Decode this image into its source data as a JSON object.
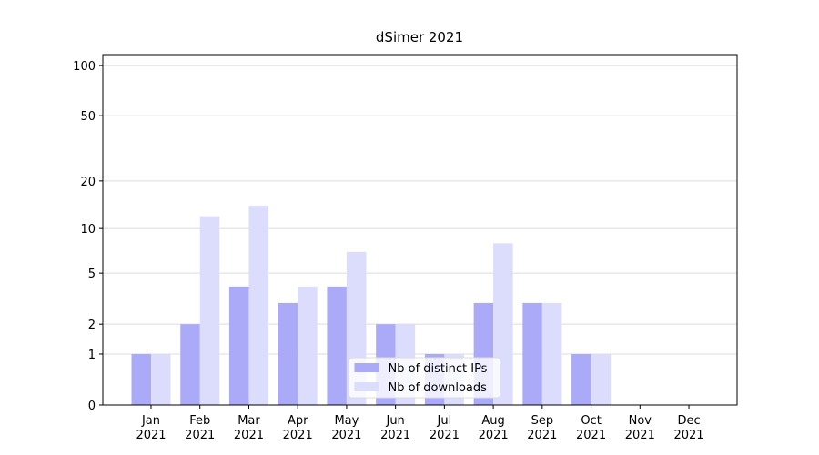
{
  "chart_data": {
    "type": "bar",
    "title": "dSimer 2021",
    "categories": [
      "Jan\n2021",
      "Feb\n2021",
      "Mar\n2021",
      "Apr\n2021",
      "May\n2021",
      "Jun\n2021",
      "Jul\n2021",
      "Aug\n2021",
      "Sep\n2021",
      "Oct\n2021",
      "Nov\n2021",
      "Dec\n2021"
    ],
    "series": [
      {
        "name": "Nb of distinct IPs",
        "color": "#aaaaf8",
        "values": [
          1,
          2,
          4,
          3,
          4,
          2,
          1,
          3,
          3,
          1,
          0,
          0
        ]
      },
      {
        "name": "Nb of downloads",
        "color": "#dcdcfc",
        "values": [
          1,
          12,
          14,
          4,
          7,
          2,
          1,
          8,
          3,
          1,
          0,
          0
        ]
      }
    ],
    "yscale": "log1p",
    "ylim": [
      0,
      116
    ],
    "yticks": [
      0,
      1,
      2,
      5,
      10,
      20,
      50,
      100
    ],
    "grid": true,
    "legend": "lower center"
  }
}
